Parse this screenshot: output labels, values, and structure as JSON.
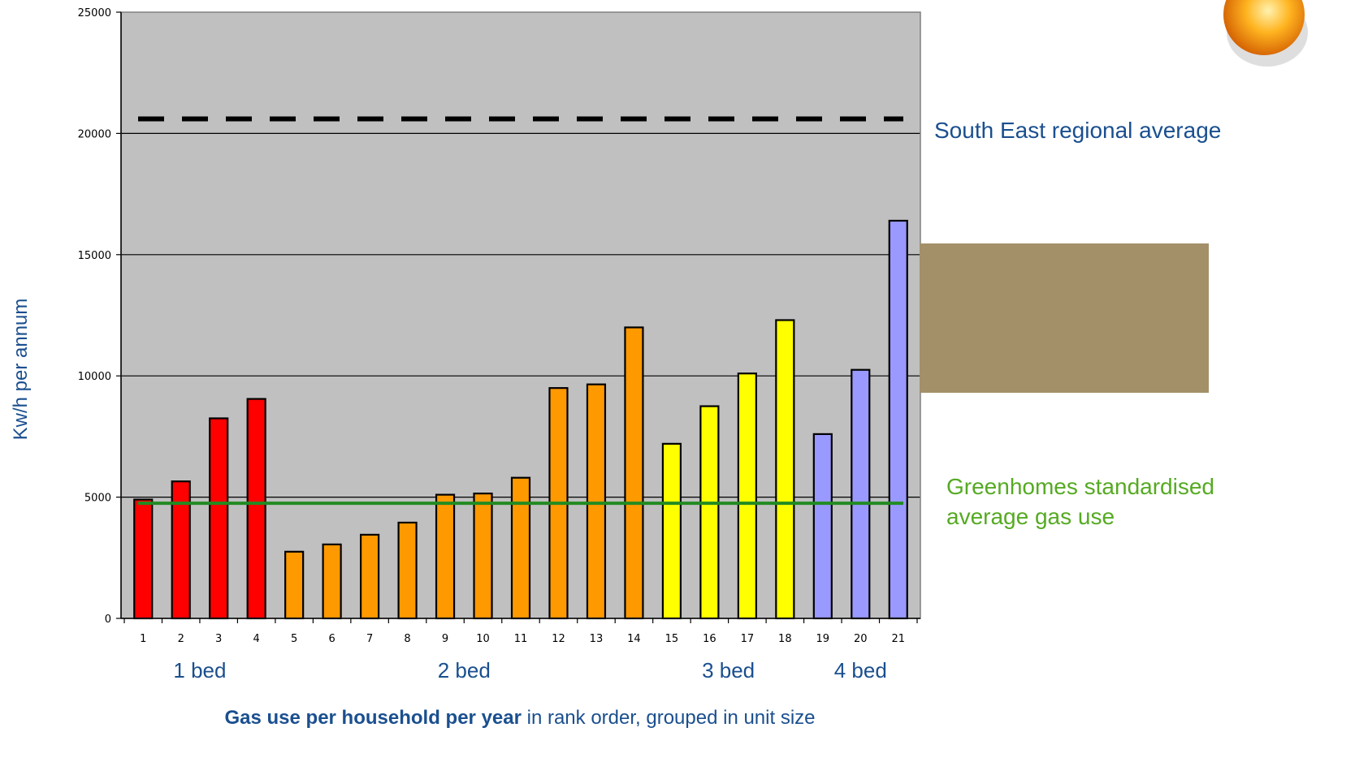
{
  "chart_data": {
    "type": "bar",
    "title": "",
    "xlabel_bold": "Gas use per household per year",
    "xlabel_rest": " in rank order, grouped in unit size",
    "ylabel": "Kw/h per annum",
    "ylim": [
      0,
      25000
    ],
    "yticks": [
      "0",
      "5000",
      "10000",
      "15000",
      "20000",
      "25000"
    ],
    "categories": [
      "1",
      "2",
      "3",
      "4",
      "5",
      "6",
      "7",
      "8",
      "9",
      "10",
      "11",
      "12",
      "13",
      "14",
      "15",
      "16",
      "17",
      "18",
      "19",
      "20",
      "21"
    ],
    "values": [
      4900,
      5650,
      8250,
      9050,
      2750,
      3050,
      3450,
      3950,
      5100,
      5150,
      5800,
      9500,
      9650,
      12000,
      7200,
      8750,
      10100,
      12300,
      7600,
      10250,
      16400
    ],
    "bar_colors": [
      "#ff0000",
      "#ff0000",
      "#ff0000",
      "#ff0000",
      "#ff9900",
      "#ff9900",
      "#ff9900",
      "#ff9900",
      "#ff9900",
      "#ff9900",
      "#ff9900",
      "#ff9900",
      "#ff9900",
      "#ff9900",
      "#ffff00",
      "#ffff00",
      "#ffff00",
      "#ffff00",
      "#9999ff",
      "#9999ff",
      "#9999ff"
    ],
    "groups": [
      {
        "label": "1 bed",
        "first": 1,
        "last": 4
      },
      {
        "label": "2 bed",
        "first": 5,
        "last": 14
      },
      {
        "label": "3 bed",
        "first": 15,
        "last": 18
      },
      {
        "label": "4 bed",
        "first": 19,
        "last": 21
      }
    ],
    "reference_lines": [
      {
        "label": "South East regional average",
        "value": 20600,
        "style": "dashed",
        "color": "#000000"
      },
      {
        "label_line1": "Greenhomes standardised",
        "label_line2": "average gas use",
        "value": 4750,
        "style": "solid",
        "color": "#228b22"
      }
    ],
    "plot_background": "#c0c0c0",
    "grid": true
  },
  "decor": {
    "overlay_box_color": "#a39068"
  }
}
